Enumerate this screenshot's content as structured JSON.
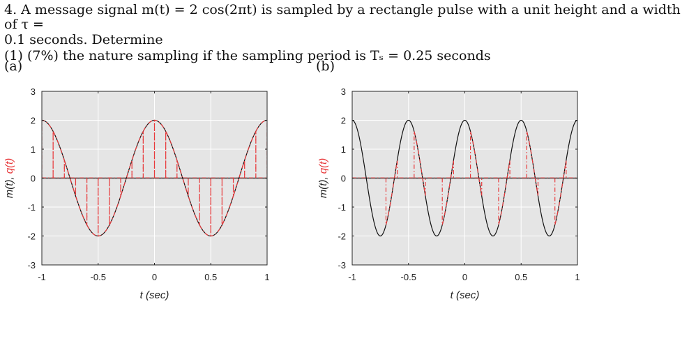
{
  "problem": {
    "line1": "4. A message signal m(t) = 2 cos(2πt) is sampled by a rectangle pulse with a unit height and a width of τ =",
    "line2": "0.1 seconds. Determine",
    "line3": "(1) (7%) the nature sampling if the sampling period is Tₛ = 0.25 seconds"
  },
  "colors": {
    "message": "#111111",
    "sampled": "#e8393b",
    "axis_bg": "#e5e5e5",
    "grid": "#ffffff"
  },
  "chart_data": [
    {
      "label": "(a)",
      "type": "line",
      "xlabel": "t (sec)",
      "ylabel_parts": [
        "m(t)",
        ", ",
        "q(t)"
      ],
      "xlim": [
        -1,
        1
      ],
      "ylim": [
        -3,
        3
      ],
      "xticks": [
        -1,
        -0.5,
        0,
        0.5,
        1
      ],
      "xtick_labels": [
        "-1",
        "-0.5",
        "0",
        "0.5",
        "1"
      ],
      "yticks": [
        -3,
        -2,
        -1,
        0,
        1,
        2,
        3
      ],
      "ytick_labels": [
        "-3",
        "-2",
        "-1",
        "0",
        "1",
        "2",
        "3"
      ],
      "grid": true,
      "series": [
        {
          "role": "message",
          "expression": "2cos(2πt)",
          "amplitude": 2,
          "frequency": 1,
          "style": "solid"
        },
        {
          "role": "sampled",
          "style": "dash-dot",
          "pulse_width": 0.1,
          "sampling_period": 0.1,
          "pulse_starts": [
            -1.0,
            -0.9,
            -0.8,
            -0.7,
            -0.6,
            -0.5,
            -0.4,
            -0.3,
            -0.2,
            -0.1,
            0.0,
            0.1,
            0.2,
            0.3,
            0.4,
            0.5,
            0.6,
            0.7,
            0.8,
            0.9
          ]
        }
      ]
    },
    {
      "label": "(b)",
      "type": "line",
      "xlabel": "t (sec)",
      "ylabel_parts": [
        "m(t)",
        ", ",
        "q(t)"
      ],
      "xlim": [
        -1,
        1
      ],
      "ylim": [
        -3,
        3
      ],
      "xticks": [
        -1,
        -0.5,
        0,
        0.5,
        1
      ],
      "xtick_labels": [
        "-1",
        "-0.5",
        "0",
        "0.5",
        "1"
      ],
      "yticks": [
        -3,
        -2,
        -1,
        0,
        1,
        2,
        3
      ],
      "ytick_labels": [
        "-3",
        "-2",
        "-1",
        "0",
        "1",
        "2",
        "3"
      ],
      "grid": true,
      "series": [
        {
          "role": "message",
          "expression": "2cos(4πt)",
          "amplitude": 2,
          "frequency": 2,
          "style": "solid"
        },
        {
          "role": "sampled",
          "style": "dash-dot",
          "pulse_width": 0.1,
          "sampling_period": 0.25,
          "pulse_starts": [
            -0.7,
            -0.45,
            -0.2,
            0.05,
            0.3,
            0.55,
            0.8
          ]
        }
      ]
    }
  ]
}
